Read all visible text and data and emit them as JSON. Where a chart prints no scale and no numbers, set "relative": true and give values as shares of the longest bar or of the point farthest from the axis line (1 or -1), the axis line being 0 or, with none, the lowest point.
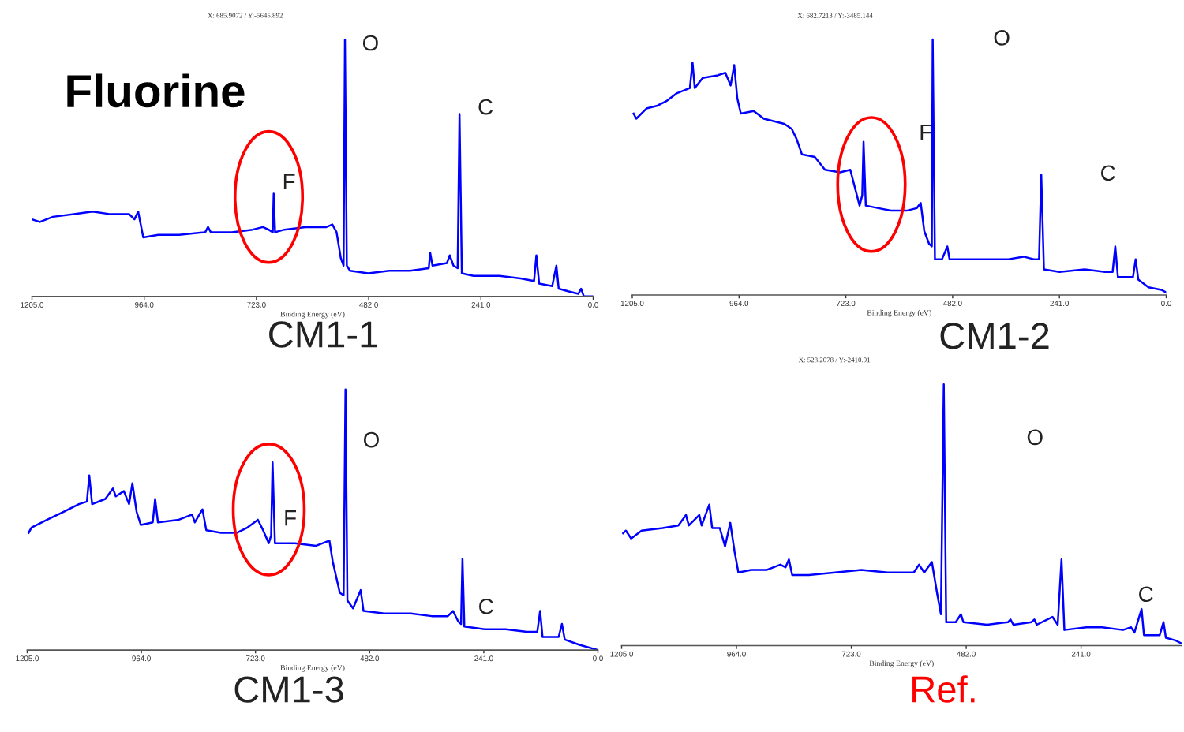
{
  "chart_data": [
    {
      "type": "line",
      "title": "CM1-1",
      "subtitle": "Fluorine",
      "xlabel": "Binding Energy (eV)",
      "relative": true,
      "tick_labels": "x",
      "color": "#0000ff",
      "xlim": [
        1205,
        0
      ],
      "xticks": [
        {
          "value": 1205,
          "label": "1205.0"
        },
        {
          "value": 964,
          "label": "964.0"
        },
        {
          "value": 723,
          "label": "723.0"
        },
        {
          "value": 482,
          "label": "482.0"
        },
        {
          "value": 241,
          "label": "241.0"
        },
        {
          "value": 0,
          "label": "0.0"
        }
      ],
      "annotations": [
        "X: 685.9072 / Y:-5645.892",
        "O",
        "C",
        "F"
      ],
      "x": [
        1205,
        1188,
        1160,
        1115,
        1075,
        1036,
        996,
        985,
        977,
        966,
        934,
        889,
        833,
        827,
        821,
        776,
        731,
        709,
        697,
        688,
        686,
        683,
        663,
        618,
        573,
        560,
        551,
        542,
        536,
        533,
        529,
        522,
        483,
        438,
        393,
        353,
        350,
        345,
        314,
        308,
        300,
        291,
        287,
        282,
        257,
        201,
        156,
        127,
        122,
        116,
        88,
        79,
        74,
        54,
        32,
        26,
        20,
        0
      ],
      "values": [
        0.3,
        0.29,
        0.31,
        0.32,
        0.33,
        0.32,
        0.32,
        0.3,
        0.33,
        0.23,
        0.24,
        0.24,
        0.25,
        0.27,
        0.25,
        0.25,
        0.26,
        0.27,
        0.26,
        0.25,
        0.4,
        0.25,
        0.26,
        0.27,
        0.27,
        0.28,
        0.25,
        0.15,
        0.12,
        1.0,
        0.12,
        0.1,
        0.09,
        0.1,
        0.1,
        0.11,
        0.17,
        0.12,
        0.13,
        0.16,
        0.12,
        0.11,
        0.71,
        0.09,
        0.08,
        0.08,
        0.07,
        0.06,
        0.16,
        0.05,
        0.04,
        0.12,
        0.03,
        0.02,
        0.01,
        0.03,
        0.0,
        0.0
      ]
    },
    {
      "type": "line",
      "title": "CM1-2",
      "xlabel": "Binding Energy (eV)",
      "relative": true,
      "tick_labels": "x",
      "color": "#0000ff",
      "xlim": [
        1205,
        0
      ],
      "xticks": [
        {
          "value": 1205,
          "label": "1205.0"
        },
        {
          "value": 964,
          "label": "964.0"
        },
        {
          "value": 723,
          "label": "723.0"
        },
        {
          "value": 482,
          "label": "482.0"
        },
        {
          "value": 241,
          "label": "241.0"
        },
        {
          "value": 0,
          "label": "0.0"
        }
      ],
      "annotations": [
        "X: 682.7213 / Y:-3485.144",
        "O",
        "F",
        "C"
      ],
      "x": [
        1202,
        1196,
        1173,
        1150,
        1127,
        1104,
        1075,
        1069,
        1064,
        1046,
        1012,
        995,
        983,
        975,
        968,
        960,
        931,
        908,
        862,
        845,
        834,
        822,
        793,
        770,
        736,
        713,
        701,
        692,
        686,
        683,
        678,
        650,
        621,
        586,
        563,
        554,
        546,
        535,
        529,
        527,
        522,
        506,
        494,
        489,
        448,
        402,
        356,
        322,
        299,
        287,
        282,
        276,
        241,
        184,
        138,
        121,
        115,
        109,
        75,
        69,
        63,
        40,
        11,
        0
      ],
      "values": [
        0.71,
        0.69,
        0.73,
        0.74,
        0.76,
        0.79,
        0.81,
        0.91,
        0.81,
        0.85,
        0.86,
        0.87,
        0.82,
        0.9,
        0.77,
        0.71,
        0.72,
        0.69,
        0.67,
        0.65,
        0.61,
        0.55,
        0.54,
        0.49,
        0.48,
        0.49,
        0.41,
        0.35,
        0.39,
        0.6,
        0.35,
        0.34,
        0.33,
        0.33,
        0.34,
        0.36,
        0.25,
        0.2,
        0.19,
        1.0,
        0.14,
        0.14,
        0.19,
        0.14,
        0.14,
        0.14,
        0.14,
        0.15,
        0.14,
        0.14,
        0.47,
        0.1,
        0.09,
        0.1,
        0.09,
        0.09,
        0.19,
        0.07,
        0.07,
        0.14,
        0.06,
        0.03,
        0.02,
        0.01
      ]
    },
    {
      "type": "line",
      "title": "CM1-3",
      "xlabel": "Binding Energy (eV)",
      "relative": true,
      "tick_labels": "x",
      "color": "#0000ff",
      "xlim": [
        1205,
        0
      ],
      "xticks": [
        {
          "value": 1205,
          "label": "1205.0"
        },
        {
          "value": 964,
          "label": "964.0"
        },
        {
          "value": 723,
          "label": "723.0"
        },
        {
          "value": 482,
          "label": "482.0"
        },
        {
          "value": 241,
          "label": "241.0"
        },
        {
          "value": 0,
          "label": "0.0"
        }
      ],
      "annotations": [
        "O",
        "F",
        "C"
      ],
      "x": [
        1202,
        1196,
        1163,
        1129,
        1096,
        1079,
        1074,
        1068,
        1040,
        1024,
        1018,
        1001,
        990,
        983,
        974,
        965,
        940,
        935,
        929,
        885,
        857,
        851,
        835,
        827,
        796,
        762,
        740,
        718,
        707,
        695,
        690,
        687,
        682,
        640,
        595,
        567,
        560,
        545,
        537,
        533,
        529,
        517,
        501,
        495,
        451,
        395,
        351,
        317,
        306,
        295,
        289,
        286,
        282,
        239,
        195,
        150,
        128,
        122,
        117,
        83,
        76,
        70,
        39,
        0
      ],
      "values": [
        0.45,
        0.47,
        0.5,
        0.53,
        0.56,
        0.57,
        0.67,
        0.56,
        0.58,
        0.62,
        0.59,
        0.61,
        0.56,
        0.64,
        0.53,
        0.48,
        0.49,
        0.58,
        0.49,
        0.5,
        0.52,
        0.49,
        0.54,
        0.46,
        0.45,
        0.45,
        0.47,
        0.5,
        0.46,
        0.41,
        0.44,
        0.72,
        0.41,
        0.41,
        0.4,
        0.42,
        0.34,
        0.22,
        0.21,
        1.0,
        0.19,
        0.16,
        0.23,
        0.15,
        0.14,
        0.14,
        0.13,
        0.13,
        0.15,
        0.11,
        0.1,
        0.35,
        0.09,
        0.08,
        0.08,
        0.07,
        0.07,
        0.15,
        0.05,
        0.05,
        0.1,
        0.04,
        0.02,
        0.0
      ]
    },
    {
      "type": "line",
      "title": "Ref.",
      "xlabel": "Binding Energy (eV)",
      "relative": true,
      "tick_labels": "x",
      "color": "#0000ff",
      "xlim": [
        1205,
        30
      ],
      "xticks": [
        {
          "value": 1205,
          "label": "1205.0"
        },
        {
          "value": 964,
          "label": "964.0"
        },
        {
          "value": 723,
          "label": "723.0"
        },
        {
          "value": 482,
          "label": "482.0"
        },
        {
          "value": 241,
          "label": "241.0"
        }
      ],
      "annotations": [
        "X: 528.2078 / Y:-2410.91",
        "O",
        "C"
      ],
      "x": [
        1202,
        1196,
        1185,
        1163,
        1119,
        1086,
        1070,
        1064,
        1042,
        1037,
        1021,
        1015,
        999,
        988,
        977,
        968,
        960,
        933,
        900,
        872,
        861,
        854,
        847,
        812,
        757,
        702,
        647,
        592,
        581,
        570,
        554,
        543,
        535,
        529,
        524,
        504,
        493,
        488,
        438,
        394,
        389,
        383,
        345,
        339,
        334,
        301,
        290,
        282,
        276,
        230,
        197,
        153,
        136,
        129,
        114,
        109,
        76,
        68,
        63,
        43,
        32
      ],
      "values": [
        0.43,
        0.44,
        0.41,
        0.44,
        0.45,
        0.46,
        0.5,
        0.46,
        0.5,
        0.46,
        0.54,
        0.45,
        0.45,
        0.38,
        0.47,
        0.36,
        0.28,
        0.29,
        0.29,
        0.31,
        0.3,
        0.33,
        0.27,
        0.27,
        0.28,
        0.29,
        0.28,
        0.28,
        0.31,
        0.28,
        0.32,
        0.2,
        0.12,
        1.0,
        0.09,
        0.09,
        0.12,
        0.09,
        0.08,
        0.09,
        0.1,
        0.08,
        0.09,
        0.1,
        0.08,
        0.11,
        0.08,
        0.33,
        0.06,
        0.07,
        0.07,
        0.06,
        0.07,
        0.05,
        0.14,
        0.04,
        0.04,
        0.09,
        0.03,
        0.02,
        0.01
      ]
    }
  ]
}
